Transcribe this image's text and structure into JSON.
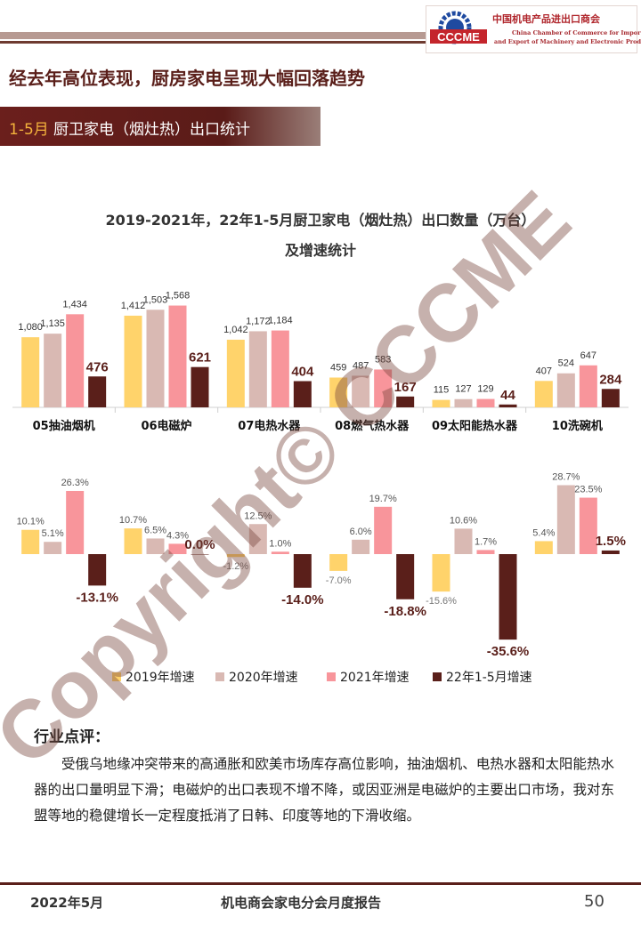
{
  "header": {
    "logo_text": "CCCME",
    "org_cn": "中国机电产品进出口商会",
    "org_en_line1": "China Chamber of Commerce for Import",
    "org_en_line2": "and Export of Machinery and Electronic Products"
  },
  "headline": "经去年高位表现，厨房家电呈现大幅回落趋势",
  "section": {
    "highlight": "1-5月",
    "rest": "厨卫家电（烟灶热）出口统计"
  },
  "chart_data": {
    "type": "bar",
    "title_line1": "2019-2021年，22年1-5月厨卫家电（烟灶热）出口数量（万台）",
    "title_line2": "及增速统计",
    "categories": [
      "05抽油烟机",
      "06电磁炉",
      "07电热水器",
      "08燃气热水器",
      "09太阳能热水器",
      "10洗碗机"
    ],
    "quantity": {
      "unit": "万台",
      "series": [
        {
          "name": "2019",
          "values": [
            1080,
            1412,
            1042,
            459,
            115,
            407
          ],
          "labels": [
            "1,080",
            "1,412",
            "1,042",
            "459",
            "115",
            "407"
          ]
        },
        {
          "name": "2020",
          "values": [
            1135,
            1503,
            1172,
            487,
            127,
            524
          ],
          "labels": [
            "1,135",
            "1,503",
            "1,172",
            "487",
            "127",
            "524"
          ]
        },
        {
          "name": "2021",
          "values": [
            1434,
            1568,
            1184,
            583,
            129,
            647
          ],
          "labels": [
            "1,434",
            "1,568",
            "1,184",
            "583",
            "129",
            "647"
          ]
        },
        {
          "name": "22年1-5月",
          "values": [
            476,
            621,
            404,
            167,
            44,
            284
          ],
          "labels": [
            "476",
            "621",
            "404",
            "167",
            "44",
            "284"
          ]
        }
      ]
    },
    "growth": {
      "unit": "%",
      "series": [
        {
          "name": "2019年增速",
          "values": [
            10.1,
            10.7,
            -1.2,
            -7.0,
            -15.6,
            5.4
          ],
          "labels": [
            "10.1%",
            "10.7%",
            "-1.2%",
            "-7.0%",
            "-15.6%",
            "5.4%"
          ]
        },
        {
          "name": "2020年增速",
          "values": [
            5.1,
            6.5,
            12.5,
            6.0,
            10.6,
            28.7
          ],
          "labels": [
            "5.1%",
            "6.5%",
            "12.5%",
            "6.0%",
            "10.6%",
            "28.7%"
          ]
        },
        {
          "name": "2021年增速",
          "values": [
            26.3,
            4.3,
            1.0,
            19.7,
            1.7,
            23.5
          ],
          "labels": [
            "26.3%",
            "4.3%",
            "1.0%",
            "19.7%",
            "1.7%",
            "23.5%"
          ]
        },
        {
          "name": "22年1-5月增速",
          "values": [
            -13.1,
            0.0,
            -14.0,
            -18.8,
            -35.6,
            1.5
          ],
          "labels": [
            "-13.1%",
            "0.0%",
            "-14.0%",
            "-18.8%",
            "-35.6%",
            "1.5%"
          ]
        }
      ]
    },
    "legend": [
      "2019年增速",
      "2020年增速",
      "2021年增速",
      "22年1-5月增速"
    ],
    "colors": [
      "#ffd36b",
      "#d9b9b3",
      "#f8959b",
      "#5a1f1a"
    ]
  },
  "comment": {
    "heading": "行业点评：",
    "body": "受俄乌地缘冲突带来的高通胀和欧美市场库存高位影响，抽油烟机、电热水器和太阳能热水器的出口量明显下滑；电磁炉的出口表现不增不降，或因亚洲是电磁炉的主要出口市场，我对东盟等地的稳健增长一定程度抵消了日韩、印度等地的下滑收缩。"
  },
  "footer": {
    "date": "2022年5月",
    "title": "机电商会家电分会月度报告",
    "page": "50"
  },
  "watermark": "Copyright© CCCME"
}
